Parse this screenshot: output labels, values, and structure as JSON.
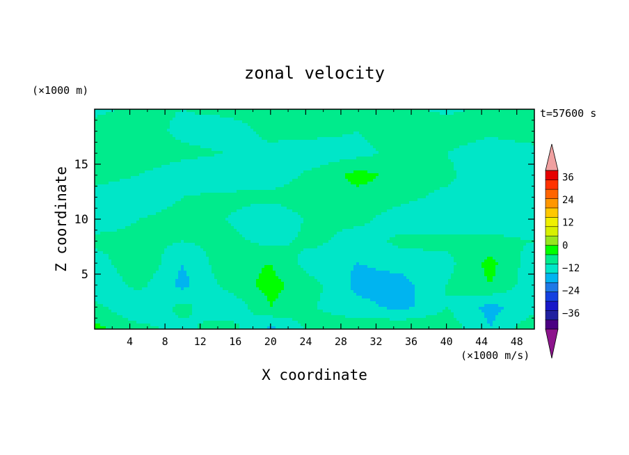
{
  "chart_data": {
    "type": "heatmap",
    "title": "zonal velocity",
    "xlabel": "X coordinate",
    "ylabel": "Z coordinate",
    "x_unit": "(×1000 m/s)",
    "y_unit": "(×1000 m)",
    "time_label": "t=57600 s",
    "xlim": [
      0,
      50
    ],
    "ylim": [
      0,
      20
    ],
    "x_ticks": [
      "4",
      "8",
      "12",
      "16",
      "20",
      "24",
      "28",
      "32",
      "36",
      "40",
      "44",
      "48"
    ],
    "y_ticks": [
      "5",
      "10",
      "15"
    ],
    "colorbar": {
      "min": -42,
      "max": 42,
      "step": 6,
      "tick_labels": [
        "36",
        "24",
        "12",
        "0",
        "−12",
        "−24",
        "−36"
      ],
      "extend": "both",
      "colors": [
        "#4b0082",
        "#2020a0",
        "#1818c8",
        "#1440e0",
        "#1e78e6",
        "#00b4f0",
        "#00e6c8",
        "#00eb8c",
        "#00ff00",
        "#96e61e",
        "#d7f000",
        "#f0f000",
        "#ffc800",
        "#ff9600",
        "#ff6400",
        "#ff3200",
        "#e60000"
      ],
      "under_color": "#8c148c",
      "over_color": "#f0a0a0"
    },
    "field": {
      "description": "Field values (m/s) on a coarse grid; rows from z=0 (bottom) to z=20 (top), columns x=0..50 step 5",
      "x": [
        0,
        5,
        10,
        15,
        20,
        25,
        30,
        35,
        40,
        45,
        50
      ],
      "z": [
        0,
        2,
        4,
        6,
        8,
        10,
        12,
        14,
        16,
        18,
        20
      ],
      "values": [
        [
          8,
          2,
          -2,
          4,
          -8,
          3,
          4,
          6,
          4,
          -6,
          5
        ],
        [
          2,
          -6,
          2,
          -6,
          6,
          0,
          -4,
          -8,
          0,
          -8,
          -2
        ],
        [
          -6,
          2,
          -8,
          2,
          8,
          2,
          -8,
          -8,
          0,
          6,
          -4
        ],
        [
          -4,
          6,
          -6,
          4,
          6,
          -4,
          -6,
          -4,
          -2,
          8,
          -4
        ],
        [
          2,
          2,
          0,
          2,
          -2,
          2,
          -4,
          2,
          2,
          2,
          0
        ],
        [
          -4,
          0,
          2,
          0,
          -6,
          2,
          2,
          -4,
          -6,
          -4,
          -6
        ],
        [
          -2,
          -4,
          0,
          2,
          2,
          4,
          4,
          2,
          -2,
          -4,
          -6
        ],
        [
          2,
          0,
          -4,
          -6,
          -4,
          2,
          8,
          4,
          2,
          -6,
          -4
        ],
        [
          6,
          4,
          2,
          0,
          -2,
          -4,
          -2,
          2,
          0,
          -6,
          -4
        ],
        [
          4,
          4,
          -2,
          -4,
          2,
          2,
          0,
          4,
          6,
          2,
          6
        ],
        [
          -2,
          2,
          0,
          2,
          4,
          2,
          0,
          2,
          -2,
          2,
          0
        ]
      ]
    }
  }
}
